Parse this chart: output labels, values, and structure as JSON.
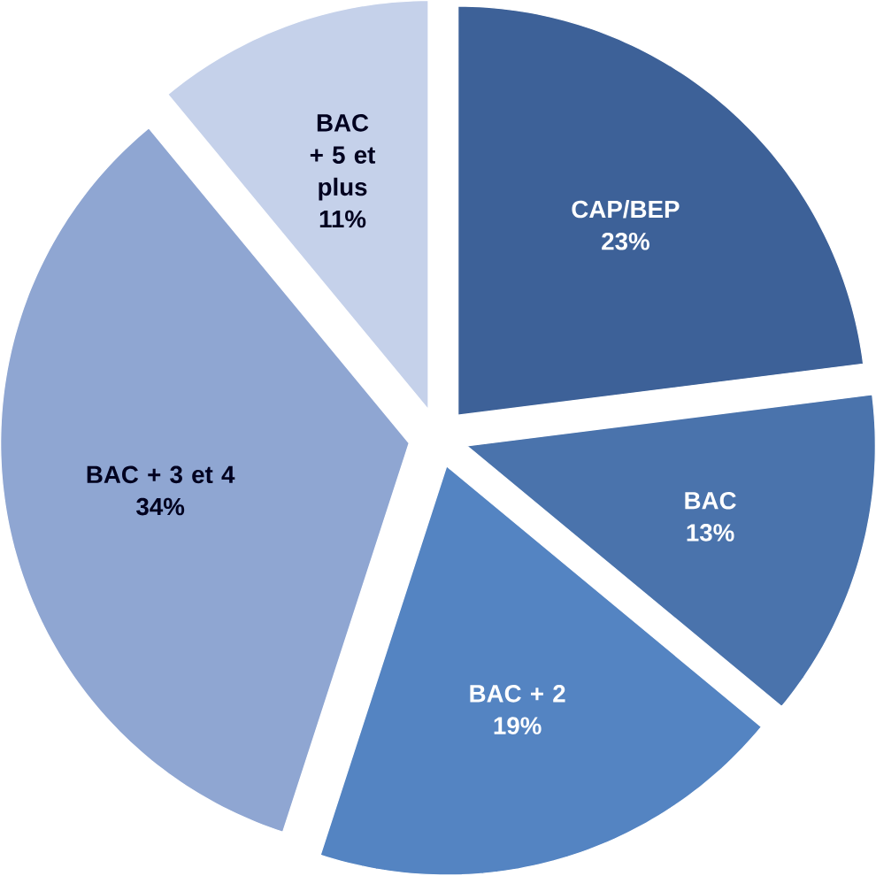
{
  "chart_data": {
    "type": "pie",
    "categories": [
      "CAP/BEP",
      "BAC",
      "BAC + 2",
      "BAC + 3 et 4",
      "BAC + 5 et plus"
    ],
    "values": [
      23,
      13,
      19,
      34,
      11
    ],
    "value_labels": [
      "23%",
      "13%",
      "19%",
      "34%",
      "11%"
    ],
    "colors": [
      "#3d6198",
      "#4a73ac",
      "#5484c2",
      "#8fa6d2",
      "#c5d1ea"
    ]
  }
}
